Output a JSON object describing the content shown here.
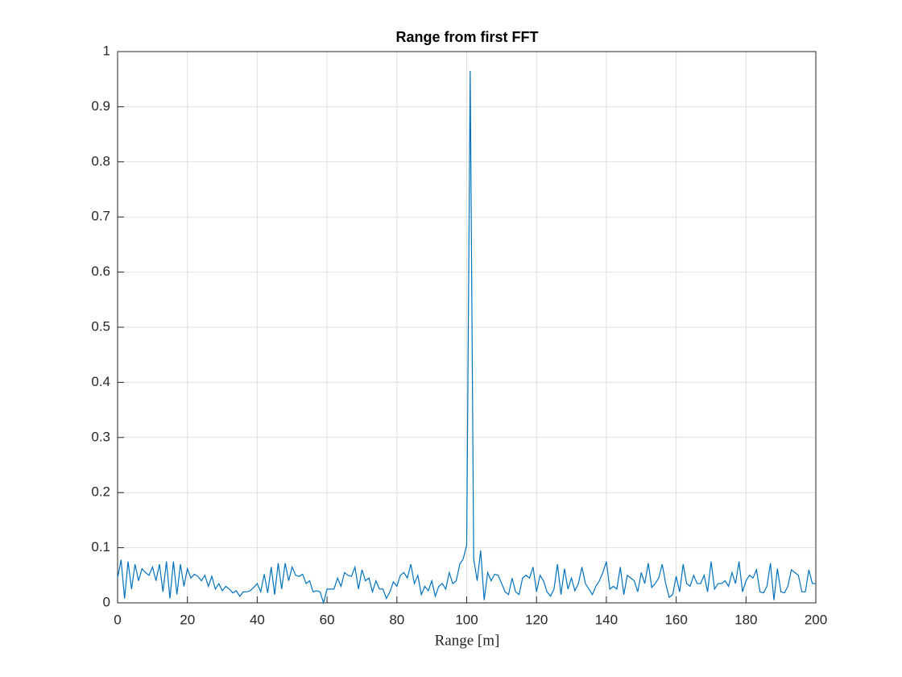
{
  "chart_data": {
    "type": "line",
    "title": "Range from first FFT",
    "x_label": "Range [m]",
    "x": [
      0,
      1,
      2,
      3,
      4,
      5,
      6,
      7,
      8,
      9,
      10,
      11,
      12,
      13,
      14,
      15,
      16,
      17,
      18,
      19,
      20,
      21,
      22,
      23,
      24,
      25,
      26,
      27,
      28,
      29,
      30,
      31,
      32,
      33,
      34,
      35,
      36,
      37,
      38,
      39,
      40,
      41,
      42,
      43,
      44,
      45,
      46,
      47,
      48,
      49,
      50,
      51,
      52,
      53,
      54,
      55,
      56,
      57,
      58,
      59,
      60,
      61,
      62,
      63,
      64,
      65,
      66,
      67,
      68,
      69,
      70,
      71,
      72,
      73,
      74,
      75,
      76,
      77,
      78,
      79,
      80,
      81,
      82,
      83,
      84,
      85,
      86,
      87,
      88,
      89,
      90,
      91,
      92,
      93,
      94,
      95,
      96,
      97,
      98,
      99,
      100,
      101,
      102,
      103,
      104,
      105,
      106,
      107,
      108,
      109,
      110,
      111,
      112,
      113,
      114,
      115,
      116,
      117,
      118,
      119,
      120,
      121,
      122,
      123,
      124,
      125,
      126,
      127,
      128,
      129,
      130,
      131,
      132,
      133,
      134,
      135,
      136,
      137,
      138,
      139,
      140,
      141,
      142,
      143,
      144,
      145,
      146,
      147,
      148,
      149,
      150,
      151,
      152,
      153,
      154,
      155,
      156,
      157,
      158,
      159,
      160,
      161,
      162,
      163,
      164,
      165,
      166,
      167,
      168,
      169,
      170,
      171,
      172,
      173,
      174,
      175,
      176,
      177,
      178,
      179,
      180,
      181,
      182,
      183,
      184,
      185,
      186,
      187,
      188,
      189,
      190,
      191,
      192,
      193,
      194,
      195,
      196,
      197,
      198,
      199,
      200
    ],
    "series": [
      {
        "color": "#0072bd",
        "values": [
          0.045,
          0.078,
          0.008,
          0.075,
          0.025,
          0.07,
          0.04,
          0.062,
          0.055,
          0.05,
          0.065,
          0.04,
          0.07,
          0.02,
          0.075,
          0.008,
          0.075,
          0.015,
          0.07,
          0.03,
          0.062,
          0.045,
          0.052,
          0.048,
          0.04,
          0.05,
          0.03,
          0.048,
          0.025,
          0.035,
          0.022,
          0.03,
          0.025,
          0.018,
          0.022,
          0.012,
          0.02,
          0.02,
          0.022,
          0.028,
          0.035,
          0.02,
          0.052,
          0.018,
          0.065,
          0.015,
          0.072,
          0.025,
          0.072,
          0.04,
          0.065,
          0.05,
          0.048,
          0.052,
          0.035,
          0.04,
          0.02,
          0.022,
          0.02,
          0.0,
          0.025,
          0.025,
          0.025,
          0.045,
          0.03,
          0.055,
          0.05,
          0.048,
          0.065,
          0.025,
          0.06,
          0.04,
          0.045,
          0.02,
          0.04,
          0.025,
          0.025,
          0.008,
          0.02,
          0.038,
          0.03,
          0.05,
          0.055,
          0.045,
          0.07,
          0.035,
          0.05,
          0.015,
          0.03,
          0.022,
          0.04,
          0.012,
          0.03,
          0.035,
          0.025,
          0.055,
          0.035,
          0.04,
          0.07,
          0.08,
          0.105,
          0.965,
          0.08,
          0.04,
          0.095,
          0.005,
          0.055,
          0.04,
          0.052,
          0.05,
          0.035,
          0.02,
          0.015,
          0.045,
          0.02,
          0.015,
          0.045,
          0.05,
          0.045,
          0.065,
          0.02,
          0.05,
          0.04,
          0.02,
          0.012,
          0.025,
          0.07,
          0.015,
          0.062,
          0.025,
          0.045,
          0.022,
          0.035,
          0.065,
          0.035,
          0.025,
          0.015,
          0.03,
          0.04,
          0.055,
          0.075,
          0.025,
          0.03,
          0.025,
          0.065,
          0.015,
          0.05,
          0.045,
          0.04,
          0.02,
          0.055,
          0.035,
          0.072,
          0.028,
          0.035,
          0.045,
          0.07,
          0.035,
          0.01,
          0.015,
          0.048,
          0.02,
          0.07,
          0.035,
          0.03,
          0.05,
          0.035,
          0.035,
          0.05,
          0.02,
          0.075,
          0.025,
          0.035,
          0.035,
          0.04,
          0.03,
          0.055,
          0.035,
          0.075,
          0.02,
          0.04,
          0.05,
          0.045,
          0.06,
          0.02,
          0.018,
          0.03,
          0.072,
          0.005,
          0.062,
          0.02,
          0.018,
          0.03,
          0.06,
          0.055,
          0.05,
          0.02,
          0.02,
          0.06,
          0.035,
          0.035
        ]
      }
    ],
    "xlim": [
      0,
      200
    ],
    "xticks": [
      0,
      20,
      40,
      60,
      80,
      100,
      120,
      140,
      160,
      180,
      200
    ],
    "ylim": [
      0,
      1
    ],
    "yticks": [
      0,
      0.1,
      0.2,
      0.3,
      0.4,
      0.5,
      0.6,
      0.7,
      0.8,
      0.9,
      1
    ],
    "grid": true
  }
}
